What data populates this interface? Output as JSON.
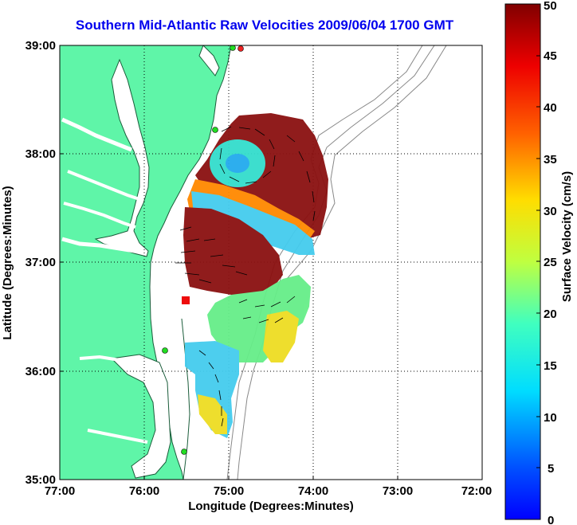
{
  "title": "Southern Mid-Atlantic Raw Velocities 2009/06/04 1700 GMT",
  "map": {
    "xlabel": "Longitude (Degrees:Minutes)",
    "ylabel": "Latitude (Degrees:Minutes)",
    "lon_ticks": [
      "77:00",
      "76:00",
      "75:00",
      "74:00",
      "73:00",
      "72:00"
    ],
    "lat_ticks": [
      "39:00",
      "38:00",
      "37:00",
      "36:00",
      "35:00"
    ],
    "lon_range": [
      -77,
      -72
    ],
    "lat_range": [
      35,
      39
    ],
    "grid": "dotted",
    "land_color": "#5ff5a8"
  },
  "colorbar": {
    "label": "Surface Velocity (cm/s)",
    "ticks": [
      "50",
      "45",
      "40",
      "35",
      "30",
      "25",
      "20",
      "15",
      "10",
      "5",
      "0"
    ],
    "range": [
      0,
      50
    ],
    "colormap": "jet"
  },
  "stations": [
    {
      "name": "green",
      "color": "#22dd22"
    },
    {
      "name": "red",
      "color": "#ee2222"
    }
  ]
}
